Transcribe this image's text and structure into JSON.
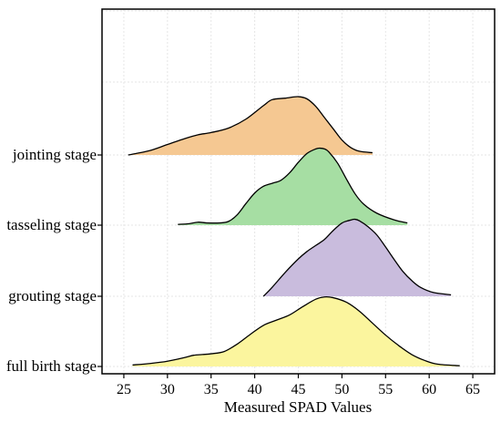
{
  "chart_data": {
    "type": "area",
    "subtype": "ridgeline density",
    "title": "",
    "xlabel": "Measured SPAD Values",
    "ylabel": "",
    "xlim": [
      22.5,
      67.5
    ],
    "xticks": [
      25,
      30,
      35,
      40,
      45,
      50,
      55,
      60,
      65
    ],
    "grid": true,
    "categories": [
      "jointing stage",
      "tasseling stage",
      "grouting stage",
      "full birth stage"
    ],
    "series": [
      {
        "name": "jointing stage",
        "color": "#f5c892",
        "x": [
          25.5,
          28,
          30,
          32,
          33.5,
          35,
          37,
          39,
          41,
          42,
          43.5,
          45,
          46,
          47,
          48,
          49,
          50,
          51,
          52,
          53.5
        ],
        "density": [
          0,
          0.06,
          0.14,
          0.22,
          0.27,
          0.3,
          0.36,
          0.48,
          0.66,
          0.74,
          0.76,
          0.78,
          0.75,
          0.65,
          0.5,
          0.35,
          0.2,
          0.1,
          0.05,
          0.03
        ]
      },
      {
        "name": "tasseling stage",
        "color": "#a6dea3",
        "x": [
          31.2,
          32.5,
          33.5,
          34.5,
          36,
          37,
          38,
          39,
          40,
          41,
          42,
          43,
          44,
          45,
          46,
          47,
          47.5,
          48,
          48.5,
          49.5,
          50.5,
          51.5,
          52.5,
          54,
          56,
          57.5
        ],
        "density": [
          0.01,
          0.02,
          0.04,
          0.03,
          0.03,
          0.05,
          0.14,
          0.29,
          0.43,
          0.52,
          0.56,
          0.6,
          0.7,
          0.84,
          0.96,
          1.02,
          1.03,
          1.02,
          0.98,
          0.83,
          0.62,
          0.42,
          0.28,
          0.16,
          0.07,
          0.03
        ]
      },
      {
        "name": "grouting stage",
        "color": "#c9bcdd",
        "x": [
          41,
          42,
          43.5,
          45,
          46,
          47,
          48,
          49,
          50,
          51,
          51.5,
          52,
          53,
          54,
          55,
          56,
          57,
          58,
          59,
          60.5,
          62.5
        ],
        "density": [
          0,
          0.12,
          0.32,
          0.5,
          0.6,
          0.68,
          0.76,
          0.88,
          0.98,
          1.02,
          1.03,
          1.01,
          0.93,
          0.82,
          0.66,
          0.49,
          0.33,
          0.21,
          0.12,
          0.05,
          0.02
        ]
      },
      {
        "name": "full birth stage",
        "color": "#fbf59e",
        "x": [
          26,
          28,
          30,
          32,
          33,
          34,
          35,
          36.5,
          38,
          39.5,
          41,
          42.5,
          44,
          45.5,
          47,
          48,
          49,
          50.5,
          52,
          53.5,
          55,
          56.5,
          58,
          59.5,
          61,
          63.5
        ],
        "density": [
          0.02,
          0.04,
          0.07,
          0.12,
          0.15,
          0.16,
          0.17,
          0.2,
          0.3,
          0.43,
          0.55,
          0.62,
          0.69,
          0.8,
          0.9,
          0.93,
          0.92,
          0.86,
          0.74,
          0.58,
          0.42,
          0.28,
          0.16,
          0.08,
          0.03,
          0.01
        ]
      }
    ]
  }
}
